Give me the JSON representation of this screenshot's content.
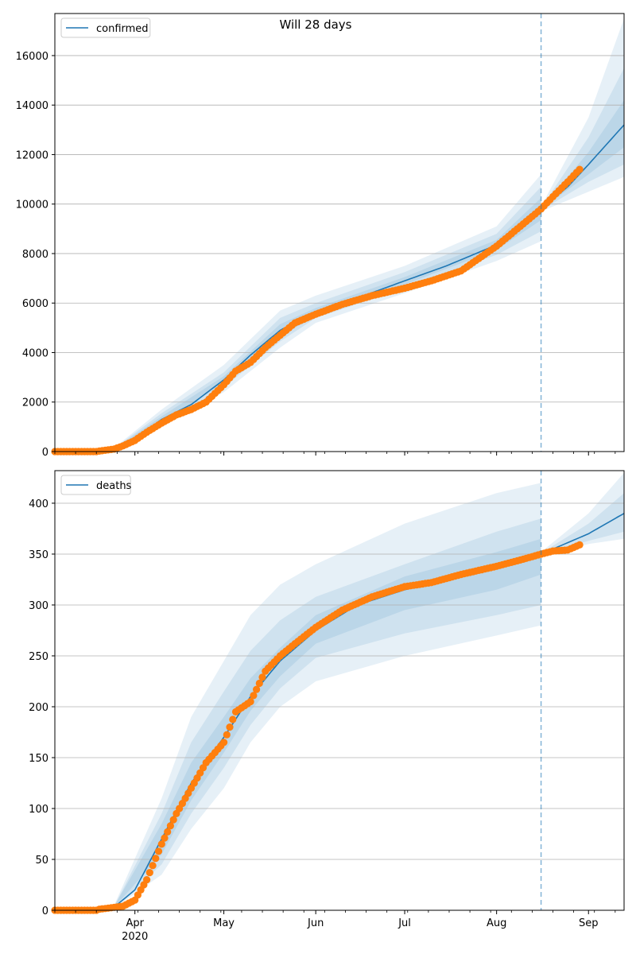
{
  "figure": {
    "title": "Will 28 days"
  },
  "colors": {
    "model": "#1f77b4",
    "observed": "#ff7f0e",
    "band": "#1f77b4",
    "grid": "#b0b0b0",
    "forecast_line": "#1f77b4"
  },
  "x_axis": {
    "start": "2020-03-05",
    "end": "2020-09-13",
    "tick_labels": [
      {
        "date": "2020-04-01",
        "label": "Apr",
        "sublabel": "2020"
      },
      {
        "date": "2020-05-01",
        "label": "May"
      },
      {
        "date": "2020-06-01",
        "label": "Jun"
      },
      {
        "date": "2020-07-01",
        "label": "Jul"
      },
      {
        "date": "2020-08-01",
        "label": "Aug"
      },
      {
        "date": "2020-09-01",
        "label": "Sep"
      }
    ],
    "forecast_start": "2020-08-16"
  },
  "chart_data": [
    {
      "type": "line",
      "panel": "top",
      "legend": [
        "confirmed"
      ],
      "legend_position": "top-left",
      "grid": "horizontal",
      "ylim": [
        0,
        17700
      ],
      "yticks": [
        0,
        2000,
        4000,
        6000,
        8000,
        10000,
        12000,
        14000,
        16000
      ],
      "model_line": {
        "name": "confirmed",
        "x": [
          "2020-03-05",
          "2020-03-20",
          "2020-03-25",
          "2020-04-01",
          "2020-04-10",
          "2020-04-20",
          "2020-05-01",
          "2020-05-10",
          "2020-05-20",
          "2020-06-01",
          "2020-06-15",
          "2020-07-01",
          "2020-07-15",
          "2020-08-01",
          "2020-08-10",
          "2020-08-16",
          "2020-08-25",
          "2020-09-01",
          "2020-09-13"
        ],
        "y": [
          0,
          10,
          80,
          500,
          1300,
          1900,
          2900,
          3900,
          4900,
          5650,
          6200,
          6900,
          7500,
          8350,
          9200,
          9800,
          10700,
          11600,
          13200
        ]
      },
      "bands": [
        {
          "x": [
            "2020-03-25",
            "2020-04-10",
            "2020-05-01",
            "2020-05-20",
            "2020-06-01",
            "2020-07-01",
            "2020-08-01",
            "2020-08-16"
          ],
          "low": [
            30,
            1000,
            2400,
            4200,
            5200,
            6400,
            7700,
            8500
          ],
          "high": [
            150,
            1700,
            3500,
            5700,
            6300,
            7500,
            9100,
            11200
          ]
        },
        {
          "x": [
            "2020-03-25",
            "2020-04-10",
            "2020-05-01",
            "2020-05-20",
            "2020-06-01",
            "2020-07-01",
            "2020-08-01",
            "2020-08-16"
          ],
          "low": [
            40,
            1100,
            2600,
            4450,
            5400,
            6600,
            7950,
            8900
          ],
          "high": [
            130,
            1550,
            3200,
            5400,
            6000,
            7250,
            8800,
            10700
          ]
        },
        {
          "x": [
            "2020-03-25",
            "2020-04-10",
            "2020-05-01",
            "2020-05-20",
            "2020-06-01",
            "2020-07-01",
            "2020-08-01",
            "2020-08-16"
          ],
          "low": [
            55,
            1200,
            2750,
            4650,
            5500,
            6750,
            8150,
            9350
          ],
          "high": [
            110,
            1420,
            3050,
            5150,
            5800,
            7050,
            8550,
            10250
          ]
        },
        {
          "x": [
            "2020-08-16",
            "2020-09-01",
            "2020-09-13"
          ],
          "low": [
            9700,
            10500,
            11100
          ],
          "high": [
            9900,
            13500,
            17500
          ]
        },
        {
          "x": [
            "2020-08-16",
            "2020-09-01",
            "2020-09-13"
          ],
          "low": [
            9750,
            10900,
            11600
          ],
          "high": [
            9850,
            12700,
            15500
          ]
        },
        {
          "x": [
            "2020-08-16",
            "2020-09-01",
            "2020-09-13"
          ],
          "low": [
            9780,
            11200,
            12300
          ],
          "high": [
            9820,
            12100,
            14200
          ]
        }
      ],
      "observed": {
        "name": "confirmed",
        "x": [
          "2020-03-20",
          "2020-03-25",
          "2020-03-28",
          "2020-04-01",
          "2020-04-05",
          "2020-04-10",
          "2020-04-15",
          "2020-04-20",
          "2020-04-25",
          "2020-05-01",
          "2020-05-05",
          "2020-05-10",
          "2020-05-15",
          "2020-05-20",
          "2020-05-25",
          "2020-06-01",
          "2020-06-10",
          "2020-06-20",
          "2020-07-01",
          "2020-07-10",
          "2020-07-20",
          "2020-08-01",
          "2020-08-05",
          "2020-08-10",
          "2020-08-16",
          "2020-08-20",
          "2020-08-25",
          "2020-08-29"
        ],
        "y": [
          20,
          100,
          230,
          450,
          780,
          1150,
          1480,
          1700,
          2000,
          2700,
          3250,
          3600,
          4200,
          4700,
          5200,
          5550,
          5950,
          6300,
          6600,
          6900,
          7300,
          8300,
          8700,
          9200,
          9800,
          10300,
          10900,
          11400
        ]
      }
    },
    {
      "type": "line",
      "panel": "bottom",
      "legend": [
        "deaths"
      ],
      "legend_position": "top-left",
      "grid": "horizontal",
      "ylim": [
        0,
        432
      ],
      "yticks": [
        0,
        50,
        100,
        150,
        200,
        250,
        300,
        350,
        400
      ],
      "model_line": {
        "name": "deaths",
        "x": [
          "2020-03-05",
          "2020-03-25",
          "2020-04-01",
          "2020-04-10",
          "2020-04-20",
          "2020-05-01",
          "2020-05-10",
          "2020-05-20",
          "2020-06-01",
          "2020-06-15",
          "2020-07-01",
          "2020-07-15",
          "2020-08-01",
          "2020-08-16",
          "2020-09-01",
          "2020-09-13"
        ],
        "y": [
          0,
          3,
          20,
          70,
          125,
          170,
          210,
          245,
          275,
          300,
          315,
          325,
          338,
          350,
          370,
          390
        ]
      },
      "bands": [
        {
          "x": [
            "2020-03-25",
            "2020-04-10",
            "2020-04-20",
            "2020-05-01",
            "2020-05-10",
            "2020-05-20",
            "2020-06-01",
            "2020-07-01",
            "2020-08-01",
            "2020-08-16"
          ],
          "low": [
            2,
            35,
            80,
            120,
            165,
            200,
            225,
            250,
            270,
            280
          ],
          "high": [
            5,
            110,
            190,
            245,
            290,
            320,
            340,
            380,
            410,
            420
          ]
        },
        {
          "x": [
            "2020-03-25",
            "2020-04-10",
            "2020-04-20",
            "2020-05-01",
            "2020-05-10",
            "2020-05-20",
            "2020-06-01",
            "2020-07-01",
            "2020-08-01",
            "2020-08-16"
          ],
          "low": [
            2,
            45,
            95,
            140,
            182,
            218,
            248,
            272,
            290,
            300
          ],
          "high": [
            4,
            95,
            165,
            215,
            255,
            285,
            308,
            340,
            372,
            385
          ]
        },
        {
          "x": [
            "2020-03-25",
            "2020-04-10",
            "2020-04-20",
            "2020-05-01",
            "2020-05-10",
            "2020-05-20",
            "2020-06-01",
            "2020-07-01",
            "2020-08-01",
            "2020-08-16"
          ],
          "low": [
            3,
            55,
            108,
            155,
            196,
            230,
            262,
            295,
            315,
            330
          ],
          "high": [
            4,
            85,
            145,
            190,
            228,
            258,
            290,
            328,
            352,
            365
          ]
        },
        {
          "x": [
            "2020-08-16",
            "2020-09-01",
            "2020-09-13"
          ],
          "low": [
            348,
            360,
            365
          ],
          "high": [
            352,
            390,
            430
          ]
        },
        {
          "x": [
            "2020-08-16",
            "2020-09-01",
            "2020-09-13"
          ],
          "low": [
            349,
            363,
            372
          ],
          "high": [
            351,
            380,
            410
          ]
        }
      ],
      "observed": {
        "name": "deaths",
        "x": [
          "2020-03-20",
          "2020-03-28",
          "2020-04-01",
          "2020-04-05",
          "2020-04-10",
          "2020-04-15",
          "2020-04-20",
          "2020-04-25",
          "2020-05-01",
          "2020-05-05",
          "2020-05-10",
          "2020-05-15",
          "2020-05-20",
          "2020-05-25",
          "2020-06-01",
          "2020-06-10",
          "2020-06-20",
          "2020-07-01",
          "2020-07-10",
          "2020-07-20",
          "2020-08-01",
          "2020-08-10",
          "2020-08-16",
          "2020-08-20",
          "2020-08-25",
          "2020-08-29"
        ],
        "y": [
          1,
          4,
          10,
          30,
          65,
          95,
          120,
          145,
          165,
          195,
          205,
          235,
          250,
          262,
          278,
          295,
          308,
          318,
          322,
          330,
          338,
          345,
          350,
          353,
          354,
          359
        ]
      }
    }
  ]
}
